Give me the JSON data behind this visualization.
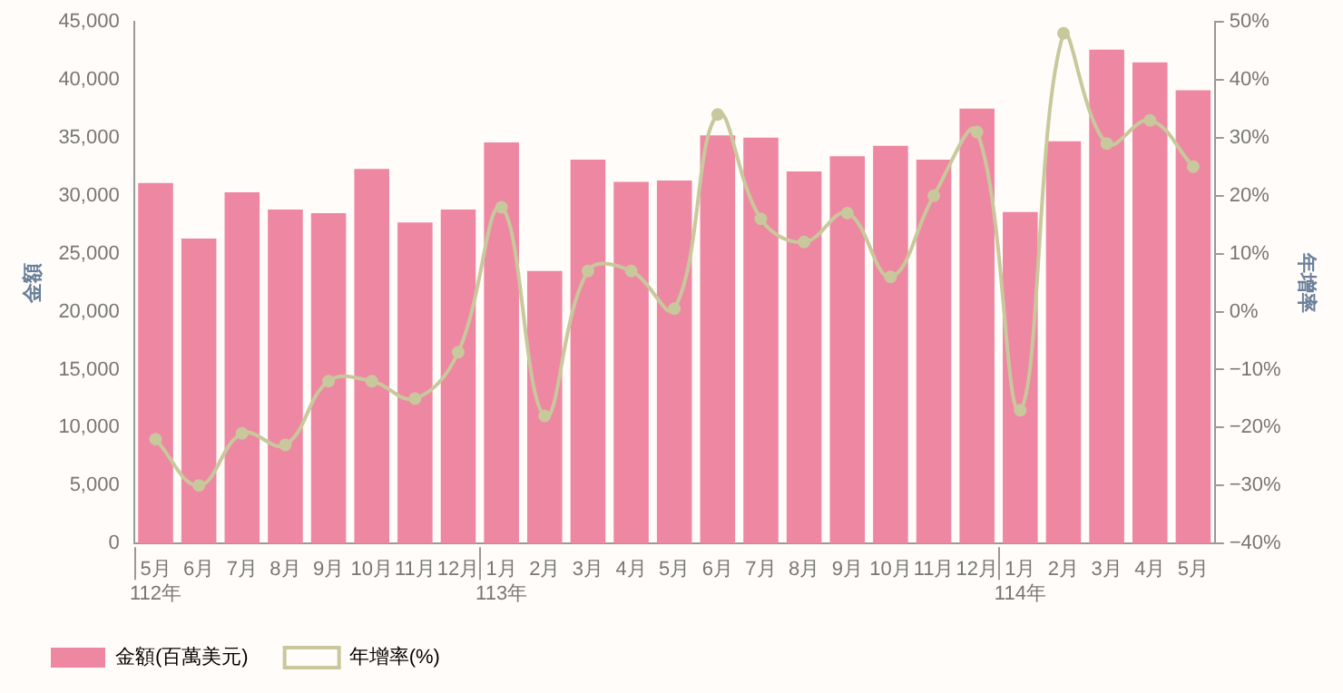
{
  "chart_data": {
    "type": "bar",
    "ylabel": "金額",
    "y2label": "年增率",
    "categories": [
      "5月\n112年",
      "6月",
      "7月",
      "8月",
      "9月",
      "10月",
      "11月",
      "12月",
      "1月\n113年",
      "2月",
      "3月",
      "4月",
      "5月",
      "6月",
      "7月",
      "8月",
      "9月",
      "10月",
      "11月",
      "12月",
      "1月\n114年",
      "2月",
      "3月",
      "4月",
      "5月"
    ],
    "series": [
      {
        "name": "金額(百萬美元)",
        "color": "#ee87a2",
        "values": [
          31100,
          26300,
          30300,
          28800,
          28500,
          32300,
          27700,
          28800,
          34600,
          23500,
          33100,
          31200,
          31300,
          35200,
          35000,
          32100,
          33400,
          34300,
          33100,
          37500,
          28600,
          34700,
          42600,
          41500,
          39100
        ]
      },
      {
        "name": "年增率(%)",
        "type": "line",
        "axis": "y2",
        "color": "#c8c89c",
        "values": [
          -22,
          -30,
          -21,
          -23,
          -12,
          -12,
          -15,
          -7,
          18,
          -18,
          7,
          7,
          0.5,
          34,
          16,
          12,
          17,
          6,
          20,
          31,
          -17,
          48,
          29,
          33,
          25
        ]
      }
    ],
    "ylim": [
      0,
      45000
    ],
    "yticks": [
      0,
      {
        "value": 5000,
        "label": "5,000"
      },
      {
        "value": 10000,
        "label": "10,000"
      },
      {
        "value": 15000,
        "label": "15,000"
      },
      {
        "value": 20000,
        "label": "20,000"
      },
      {
        "value": 25000,
        "label": "25,000"
      },
      {
        "value": 30000,
        "label": "30,000"
      },
      {
        "value": 35000,
        "label": "35,000"
      },
      {
        "value": 40000,
        "label": "40,000"
      },
      {
        "value": 45000,
        "label": "45,000"
      }
    ],
    "y2lim": [
      -40,
      50
    ],
    "y2ticks": [
      {
        "value": -40,
        "label": "−40%"
      },
      {
        "value": -30,
        "label": "−30%"
      },
      {
        "value": -20,
        "label": "−20%"
      },
      {
        "value": -10,
        "label": "−10%"
      },
      {
        "value": 0,
        "label": "0%"
      },
      {
        "value": 10,
        "label": "10%"
      },
      {
        "value": 20,
        "label": "20%"
      },
      {
        "value": 30,
        "label": "30%"
      },
      {
        "value": 40,
        "label": "40%"
      },
      {
        "value": 50,
        "label": "50%"
      }
    ],
    "grid": false,
    "legend": "bottom left",
    "marker": "circle",
    "line_style": "solid"
  }
}
